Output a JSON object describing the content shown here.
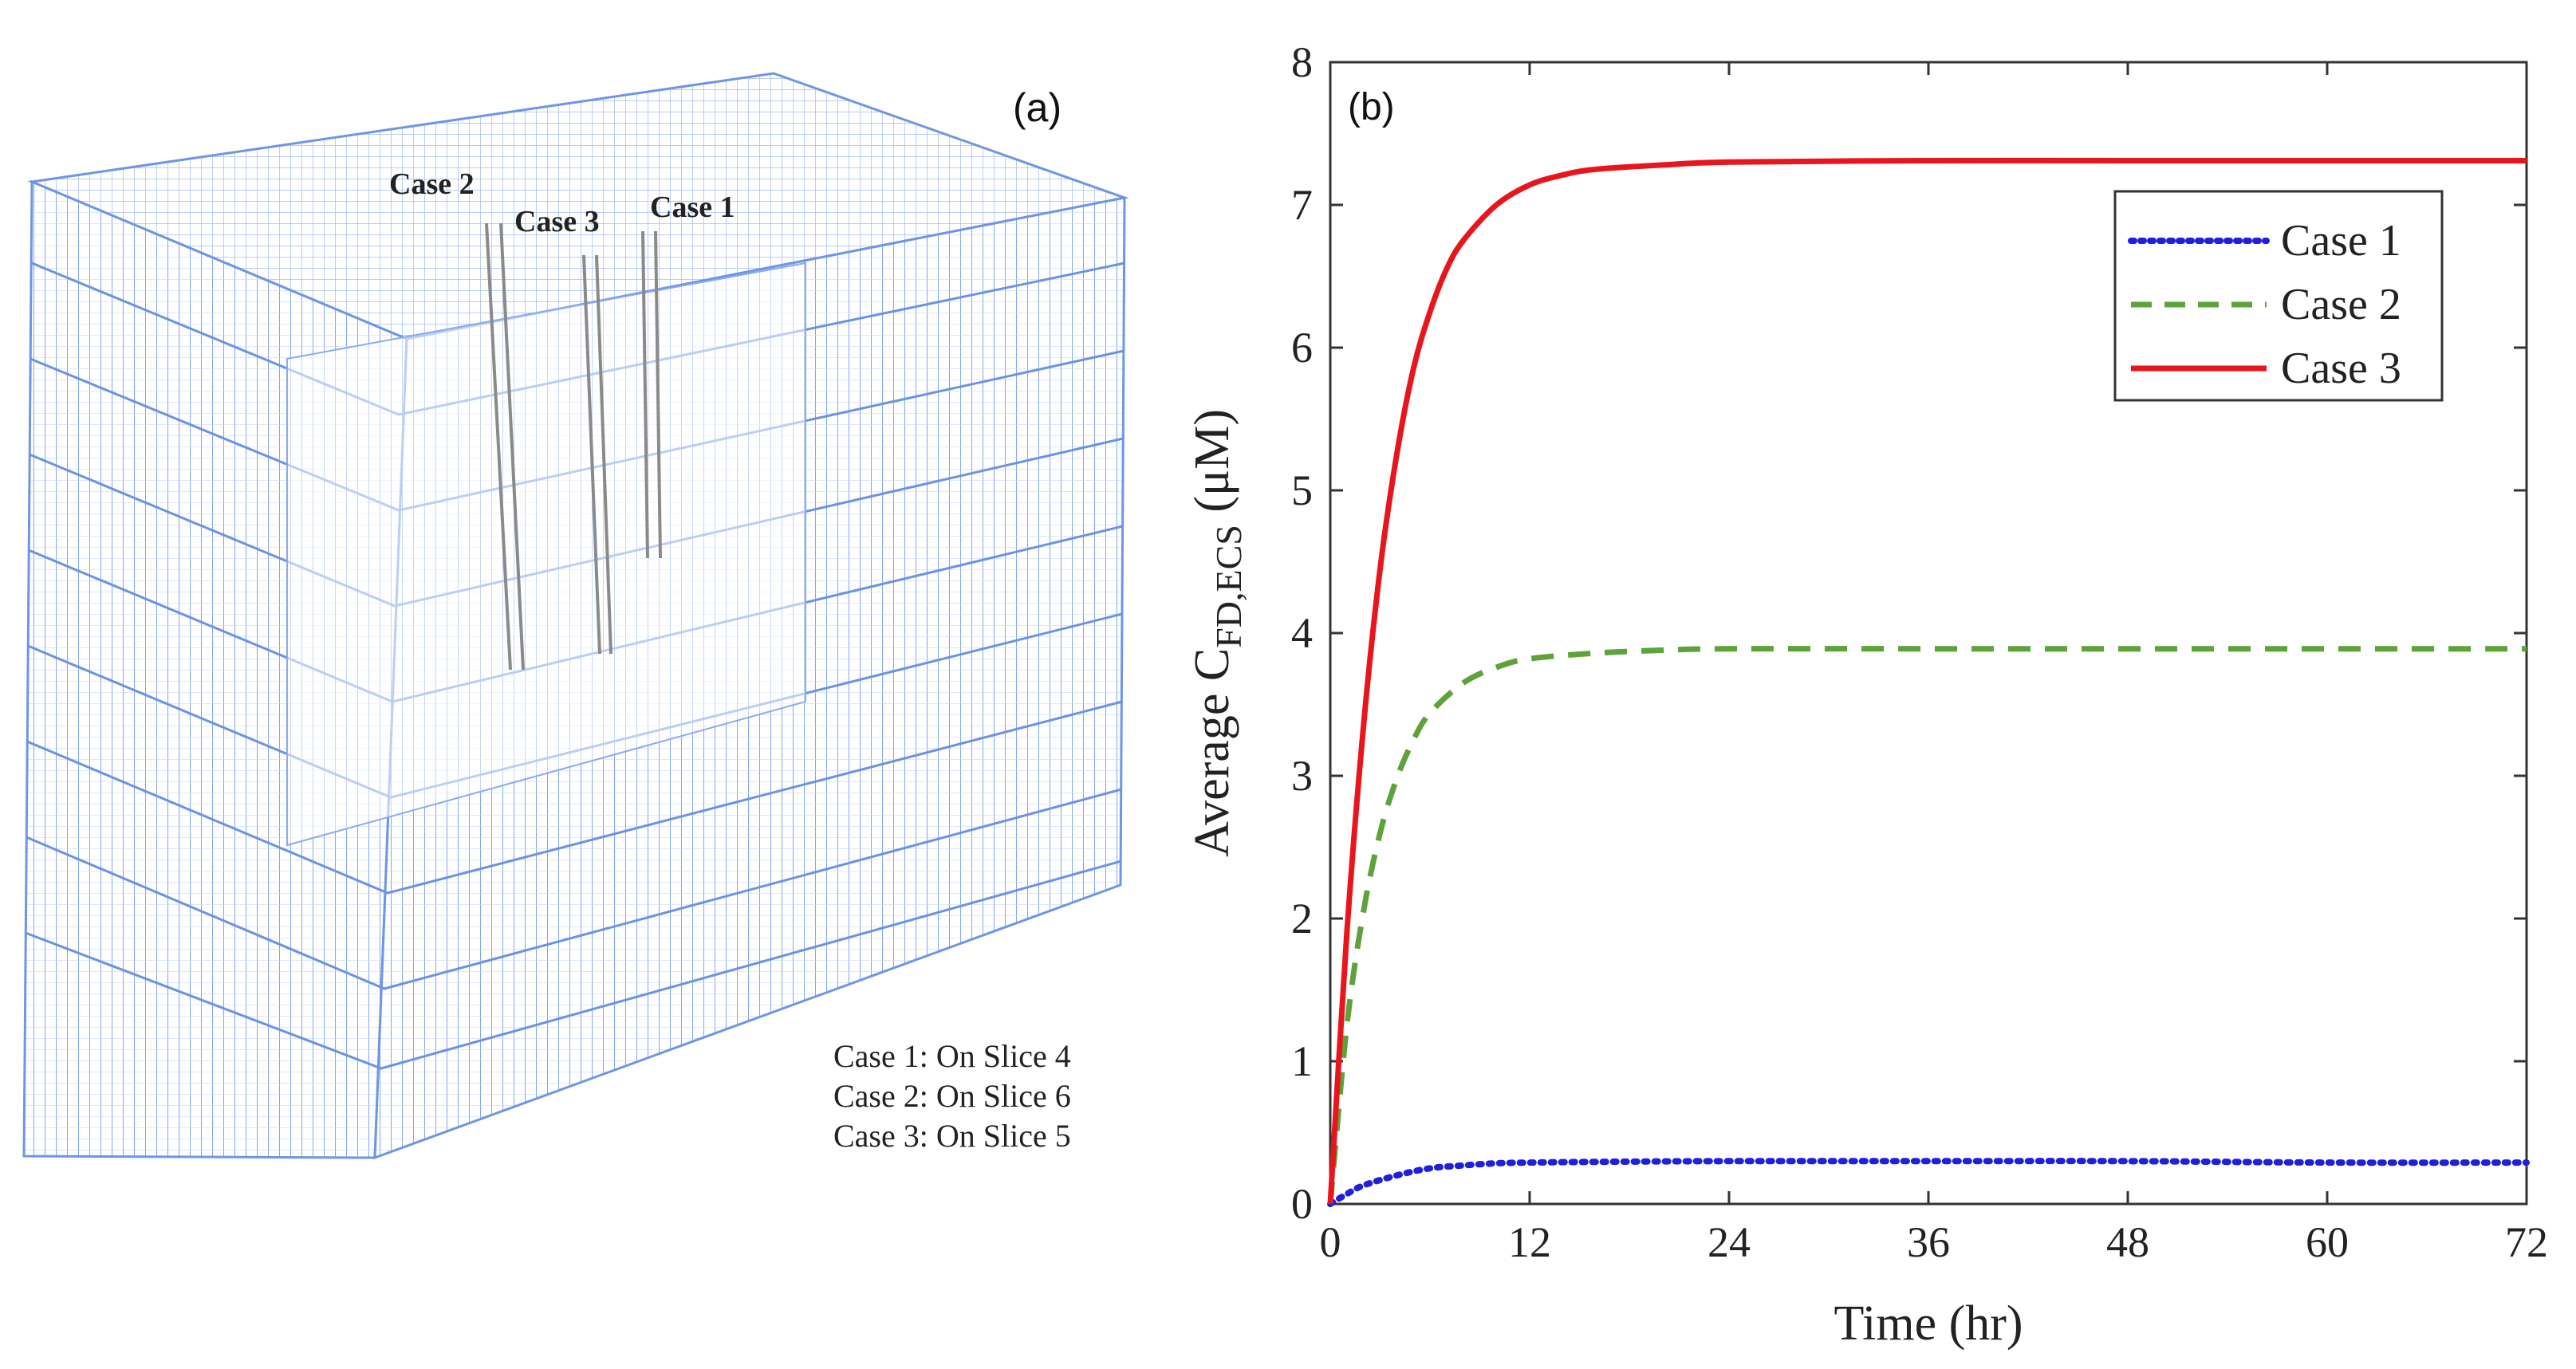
{
  "panel_a": {
    "label": "(a)",
    "case_labels": [
      "Case 2",
      "Case 3",
      "Case 1"
    ],
    "note_lines": [
      "Case 1: On Slice 4",
      "Case 2: On Slice 6",
      "Case 3: On Slice 5"
    ]
  },
  "chart_data": {
    "type": "line",
    "panel_label": "(b)",
    "xlabel": "Time (hr)",
    "ylabel": {
      "prefix": "Average C",
      "subscript": "FD,ECS",
      "unit": " (μM)"
    },
    "xlim": [
      0,
      72
    ],
    "ylim": [
      0,
      8
    ],
    "x_ticks": [
      0,
      12,
      24,
      36,
      48,
      60,
      72
    ],
    "y_ticks": [
      0,
      1,
      2,
      3,
      4,
      5,
      6,
      7,
      8
    ],
    "x_tick_labels": [
      "0",
      "12",
      "24",
      "36",
      "48",
      "60",
      "72"
    ],
    "y_tick_labels": [
      "0",
      "1",
      "2",
      "3",
      "4",
      "5",
      "6",
      "7",
      "8"
    ],
    "legend_position": "top-right",
    "series": [
      {
        "name": "Case 1",
        "color": "#1f1fdc",
        "style": "dotted",
        "x": [
          0,
          1,
          2,
          4,
          6,
          8,
          10,
          12,
          16,
          24,
          36,
          48,
          60,
          72
        ],
        "y": [
          0,
          0.07,
          0.13,
          0.2,
          0.25,
          0.27,
          0.285,
          0.29,
          0.295,
          0.3,
          0.3,
          0.3,
          0.29,
          0.29
        ]
      },
      {
        "name": "Case 2",
        "color": "#5ea23a",
        "style": "dashed",
        "x": [
          0,
          1,
          2,
          3,
          4,
          5,
          6,
          8,
          10,
          12,
          16,
          20,
          24,
          36,
          48,
          60,
          72
        ],
        "y": [
          0,
          1.25,
          2.05,
          2.6,
          2.98,
          3.25,
          3.44,
          3.65,
          3.76,
          3.82,
          3.86,
          3.88,
          3.89,
          3.89,
          3.89,
          3.89,
          3.89
        ]
      },
      {
        "name": "Case 3",
        "color": "#e8161c",
        "style": "solid",
        "x": [
          0,
          1,
          2,
          3,
          4,
          5,
          6,
          7,
          8,
          10,
          12,
          14,
          16,
          20,
          24,
          36,
          48,
          60,
          72
        ],
        "y": [
          0,
          1.9,
          3.35,
          4.45,
          5.25,
          5.85,
          6.25,
          6.55,
          6.75,
          7.0,
          7.14,
          7.21,
          7.25,
          7.28,
          7.3,
          7.31,
          7.31,
          7.31,
          7.31
        ]
      }
    ]
  }
}
